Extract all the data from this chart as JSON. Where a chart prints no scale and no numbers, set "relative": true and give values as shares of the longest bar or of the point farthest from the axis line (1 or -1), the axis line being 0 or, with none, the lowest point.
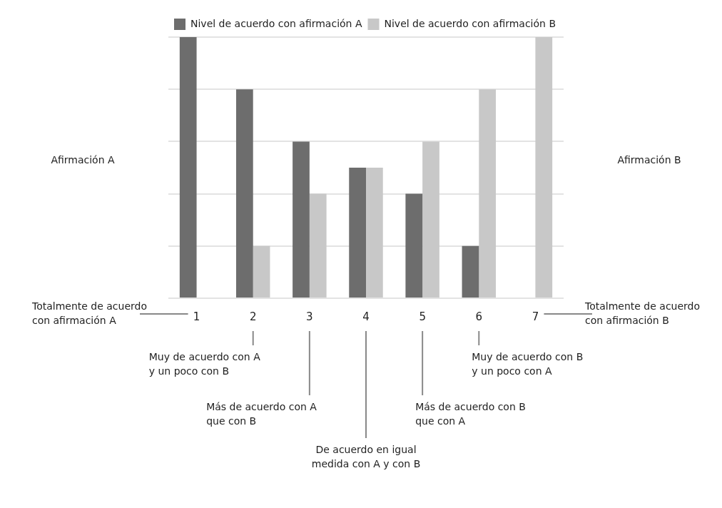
{
  "chart_data": {
    "type": "bar",
    "relative": true,
    "grid": "y",
    "legend": "top",
    "categories": [
      "1",
      "2",
      "3",
      "4",
      "5",
      "6",
      "7"
    ],
    "series": [
      {
        "name": "Nivel de acuerdo con afirmación A",
        "color": "#6d6d6d",
        "values": [
          1,
          0.8,
          0.6,
          0.5,
          0.4,
          0.2,
          0
        ]
      },
      {
        "name": "Nivel de acuerdo con afirmación B",
        "color": "#c8c8c8",
        "values": [
          0,
          0.2,
          0.4,
          0.5,
          0.6,
          0.8,
          1
        ]
      }
    ],
    "annotations": [
      "Afirmación A",
      "Afirmación B",
      "Totalmente de acuerdo\ncon afirmación A",
      "Muy de acuerdo con A\ny un poco con B",
      "Más de acuerdo con A\nque con B",
      "De acuerdo en igual\nmedida con A y con B",
      "Más de acuerdo con B\nque con A",
      "Muy de acuerdo con B\ny un poco con A",
      "Totalmente de acuerdo\ncon afirmación B"
    ]
  }
}
